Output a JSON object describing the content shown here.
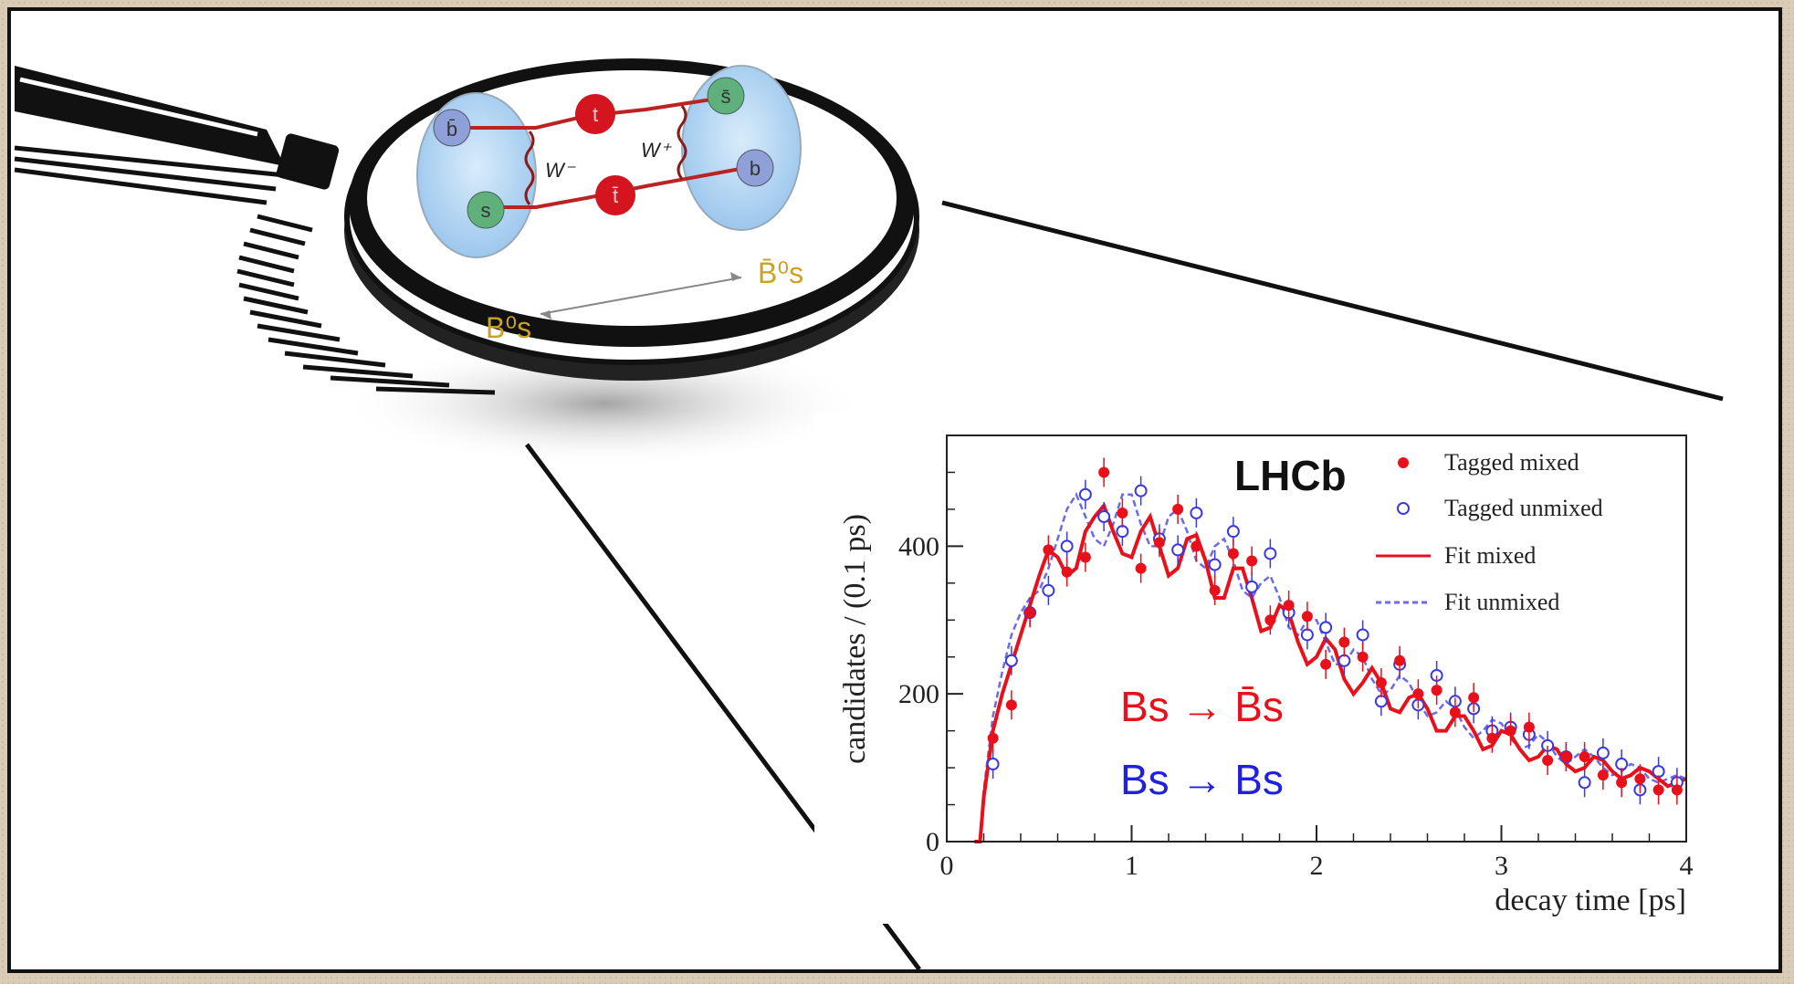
{
  "diagram": {
    "quarks": {
      "top_left": "b̄",
      "bottom_left": "s",
      "top_right": "s̄",
      "bottom_right": "b",
      "internal_top": "t",
      "internal_bottom": "t̄"
    },
    "bosons": [
      "W⁻",
      "W⁺"
    ],
    "meson_left": "B⁰s",
    "meson_right": "B̄⁰s"
  },
  "chart_data": {
    "type": "scatter",
    "brand": "LHCb",
    "xlabel": "decay time [ps]",
    "ylabel": "candidates / (0.1 ps)",
    "xlim": [
      0,
      4
    ],
    "ylim": [
      0,
      550
    ],
    "xticks": [
      "0",
      "1",
      "2",
      "3",
      "4"
    ],
    "yticks": [
      "0",
      "200",
      "400"
    ],
    "legend_position": "top-right",
    "legend": [
      {
        "label": "Tagged mixed",
        "kind": "filled-dot",
        "color": "#e8101a"
      },
      {
        "label": "Tagged unmixed",
        "kind": "open-circle",
        "color": "#3a3ae0"
      },
      {
        "label": "Fit mixed",
        "kind": "solid-line",
        "color": "#e8101a"
      },
      {
        "label": "Fit unmixed",
        "kind": "dashed-line",
        "color": "#6b6bea"
      }
    ],
    "annotations": {
      "mixed": "Bs → B̄s",
      "unmixed": "Bs → Bs"
    },
    "series": [
      {
        "name": "Tagged mixed",
        "color": "#e8101a",
        "x": [
          0.25,
          0.35,
          0.45,
          0.55,
          0.65,
          0.75,
          0.85,
          0.95,
          1.05,
          1.15,
          1.25,
          1.35,
          1.45,
          1.55,
          1.65,
          1.75,
          1.85,
          1.95,
          2.05,
          2.15,
          2.25,
          2.35,
          2.45,
          2.55,
          2.65,
          2.75,
          2.85,
          2.95,
          3.05,
          3.15,
          3.25,
          3.35,
          3.45,
          3.55,
          3.65,
          3.75,
          3.85,
          3.95
        ],
        "y": [
          140,
          185,
          310,
          395,
          365,
          385,
          500,
          445,
          370,
          405,
          450,
          400,
          340,
          390,
          380,
          300,
          320,
          305,
          240,
          270,
          250,
          215,
          245,
          200,
          205,
          175,
          195,
          140,
          150,
          155,
          110,
          115,
          115,
          90,
          80,
          85,
          70,
          70
        ]
      },
      {
        "name": "Tagged unmixed",
        "color": "#3a3ae0",
        "x": [
          0.25,
          0.35,
          0.45,
          0.55,
          0.65,
          0.75,
          0.85,
          0.95,
          1.05,
          1.15,
          1.25,
          1.35,
          1.45,
          1.55,
          1.65,
          1.75,
          1.85,
          1.95,
          2.05,
          2.15,
          2.25,
          2.35,
          2.45,
          2.55,
          2.65,
          2.75,
          2.85,
          2.95,
          3.05,
          3.15,
          3.25,
          3.35,
          3.45,
          3.55,
          3.65,
          3.75,
          3.85,
          3.95
        ],
        "y": [
          105,
          245,
          310,
          340,
          400,
          470,
          440,
          420,
          475,
          410,
          395,
          445,
          375,
          420,
          345,
          390,
          310,
          280,
          290,
          245,
          280,
          190,
          240,
          185,
          225,
          190,
          180,
          150,
          155,
          145,
          130,
          115,
          80,
          120,
          105,
          70,
          95,
          80
        ]
      },
      {
        "name": "Fit mixed",
        "color": "#e8101a",
        "x": [
          0.15,
          0.18,
          0.2,
          0.25,
          0.3,
          0.35,
          0.4,
          0.45,
          0.5,
          0.55,
          0.6,
          0.65,
          0.7,
          0.75,
          0.8,
          0.85,
          0.9,
          0.95,
          1.0,
          1.05,
          1.1,
          1.15,
          1.2,
          1.25,
          1.3,
          1.35,
          1.4,
          1.45,
          1.5,
          1.55,
          1.6,
          1.65,
          1.7,
          1.75,
          1.8,
          1.85,
          1.9,
          1.95,
          2.0,
          2.05,
          2.1,
          2.15,
          2.2,
          2.25,
          2.3,
          2.35,
          2.4,
          2.45,
          2.5,
          2.55,
          2.6,
          2.65,
          2.7,
          2.75,
          2.8,
          2.85,
          2.9,
          2.95,
          3.0,
          3.05,
          3.1,
          3.15,
          3.2,
          3.25,
          3.3,
          3.35,
          3.4,
          3.45,
          3.5,
          3.55,
          3.6,
          3.65,
          3.7,
          3.75,
          3.8,
          3.85,
          3.9,
          3.95,
          4.0
        ],
        "y": [
          0,
          0,
          60,
          150,
          200,
          240,
          280,
          320,
          360,
          395,
          385,
          360,
          370,
          420,
          440,
          455,
          420,
          390,
          385,
          420,
          440,
          400,
          360,
          370,
          410,
          415,
          380,
          330,
          330,
          370,
          370,
          330,
          285,
          290,
          320,
          310,
          270,
          240,
          250,
          275,
          260,
          220,
          200,
          215,
          235,
          215,
          180,
          175,
          195,
          200,
          180,
          150,
          150,
          170,
          170,
          150,
          125,
          130,
          150,
          145,
          125,
          110,
          115,
          130,
          125,
          105,
          95,
          100,
          115,
          110,
          95,
          85,
          90,
          100,
          95,
          85,
          75,
          80,
          85
        ]
      },
      {
        "name": "Fit unmixed",
        "color": "#6b6bea",
        "x": [
          0.15,
          0.18,
          0.2,
          0.25,
          0.3,
          0.35,
          0.4,
          0.45,
          0.5,
          0.55,
          0.6,
          0.65,
          0.7,
          0.75,
          0.8,
          0.85,
          0.9,
          0.95,
          1.0,
          1.05,
          1.1,
          1.15,
          1.2,
          1.25,
          1.3,
          1.35,
          1.4,
          1.45,
          1.5,
          1.55,
          1.6,
          1.65,
          1.7,
          1.75,
          1.8,
          1.85,
          1.9,
          1.95,
          2.0,
          2.05,
          2.1,
          2.15,
          2.2,
          2.25,
          2.3,
          2.35,
          2.4,
          2.45,
          2.5,
          2.55,
          2.6,
          2.65,
          2.7,
          2.75,
          2.8,
          2.85,
          2.9,
          2.95,
          3.0,
          3.05,
          3.1,
          3.15,
          3.2,
          3.25,
          3.3,
          3.35,
          3.4,
          3.45,
          3.5,
          3.55,
          3.6,
          3.65,
          3.7,
          3.75,
          3.8,
          3.85,
          3.9,
          3.95,
          4.0
        ],
        "y": [
          0,
          0,
          70,
          170,
          230,
          280,
          310,
          330,
          340,
          370,
          410,
          450,
          470,
          440,
          410,
          400,
          430,
          470,
          470,
          430,
          400,
          400,
          440,
          450,
          420,
          380,
          370,
          400,
          410,
          380,
          340,
          330,
          350,
          360,
          330,
          290,
          280,
          300,
          300,
          270,
          240,
          240,
          260,
          250,
          220,
          200,
          205,
          225,
          215,
          190,
          170,
          175,
          190,
          180,
          155,
          140,
          150,
          165,
          160,
          140,
          125,
          130,
          145,
          135,
          115,
          105,
          115,
          125,
          115,
          100,
          90,
          95,
          105,
          100,
          85,
          80,
          85,
          90,
          85
        ]
      }
    ]
  }
}
